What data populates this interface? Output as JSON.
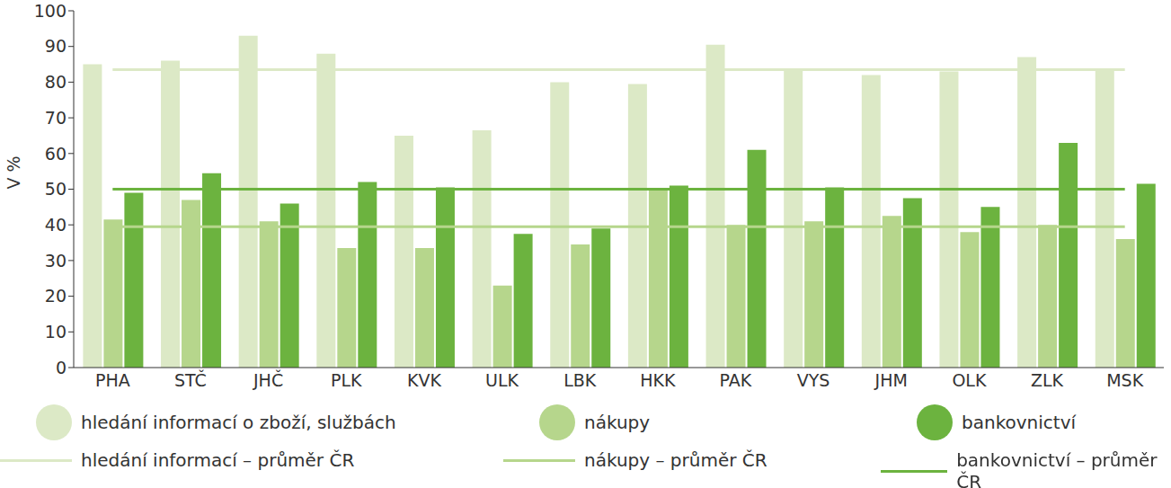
{
  "chart_data": {
    "type": "bar",
    "y_label": "V %",
    "categories": [
      "PHA",
      "STČ",
      "JHČ",
      "PLK",
      "KVK",
      "ULK",
      "LBK",
      "HKK",
      "PAK",
      "VYS",
      "JHM",
      "OLK",
      "ZLK",
      "MSK"
    ],
    "ylim": [
      0,
      100
    ],
    "yticks": [
      0,
      10,
      20,
      30,
      40,
      50,
      60,
      70,
      80,
      90,
      100
    ],
    "grid": false,
    "series": [
      {
        "name": "hledání informací o zboží, službách",
        "color": "#dce9c6",
        "type": "bar",
        "values": [
          85,
          86,
          93,
          88,
          65,
          66.5,
          80,
          79.5,
          90.5,
          83.5,
          82,
          83,
          87,
          83.5
        ]
      },
      {
        "name": "nákupy",
        "color": "#b6d68c",
        "type": "bar",
        "values": [
          41.5,
          47,
          41,
          33.5,
          33.5,
          23,
          34.5,
          50,
          40,
          41,
          42.5,
          38,
          40,
          36
        ]
      },
      {
        "name": "bankovnictví",
        "color": "#6cb33f",
        "type": "bar",
        "values": [
          49,
          54.5,
          46,
          52,
          50.5,
          37.5,
          39,
          51,
          61,
          50.5,
          47.5,
          45,
          63,
          51.5
        ]
      },
      {
        "name": "hledání informací – průměr ČR",
        "color": "#dce9c6",
        "type": "line",
        "values": [
          83.5,
          83.5,
          83.5,
          83.5,
          83.5,
          83.5,
          83.5,
          83.5,
          83.5,
          83.5,
          83.5,
          83.5,
          83.5,
          83.5
        ]
      },
      {
        "name": "nákupy – průměr ČR",
        "color": "#b6d68c",
        "type": "line",
        "values": [
          39.5,
          39.5,
          39.5,
          39.5,
          39.5,
          39.5,
          39.5,
          39.5,
          39.5,
          39.5,
          39.5,
          39.5,
          39.5,
          39.5
        ]
      },
      {
        "name": "bankovnictví – průměr ČR",
        "color": "#6cb33f",
        "type": "line",
        "values": [
          50,
          50,
          50,
          50,
          50,
          50,
          50,
          50,
          50,
          50,
          50,
          50,
          50,
          50
        ]
      }
    ]
  }
}
